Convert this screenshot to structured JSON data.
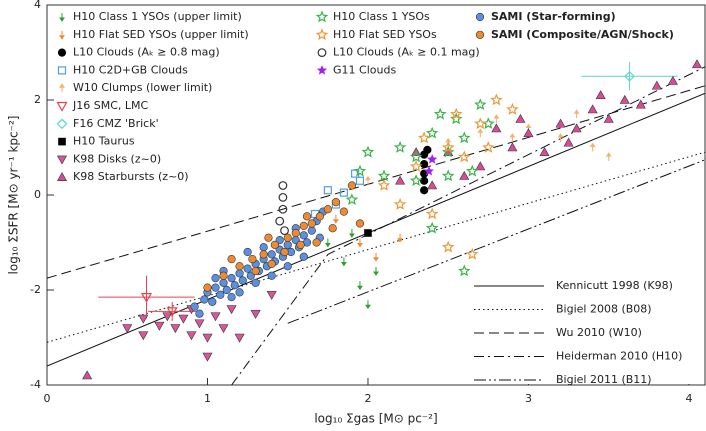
{
  "chart_data": {
    "type": "scatter",
    "xlabel": "log₁₀ Σgas [M⊙ pc⁻²]",
    "ylabel": "log₁₀ ΣSFR [M⊙ yr⁻¹ kpc⁻²]",
    "xlim": [
      0,
      4.1
    ],
    "ylim": [
      -4,
      4
    ],
    "xticks": [
      0,
      1,
      2,
      3,
      4
    ],
    "yticks": [
      -4,
      -2,
      0,
      2,
      4
    ],
    "series": [
      {
        "name": "H10 Class 1 YSOs (upper limit)",
        "color": "#2ca02c",
        "marker": "arrow-down",
        "x": [
          1.85,
          1.95,
          2.0,
          1.75,
          2.05,
          1.9
        ],
        "y": [
          -1.4,
          -1.9,
          -2.3,
          -1.0,
          -1.6,
          -0.8
        ]
      },
      {
        "name": "H10 Flat SED YSOs (upper limit)",
        "color": "#f08a30",
        "marker": "arrow-down",
        "x": [
          1.8,
          1.95,
          2.05,
          2.2
        ],
        "y": [
          -0.5,
          -1.0,
          -1.3,
          -0.9
        ]
      },
      {
        "name": "L10 Clouds (Aₖ ≥ 0.8 mag)",
        "color": "#000000",
        "marker": "circle",
        "x": [
          2.35,
          2.35,
          2.35,
          2.35,
          2.35,
          2.37
        ],
        "y": [
          0.85,
          0.65,
          0.45,
          0.3,
          0.1,
          0.95
        ]
      },
      {
        "name": "H10 C2D+GB Clouds",
        "color": "#4f9fe6",
        "marker": "open-square",
        "x": [
          1.67,
          1.8,
          1.85,
          1.92,
          1.95,
          1.75
        ],
        "y": [
          -0.4,
          -0.2,
          0.05,
          0.45,
          0.3,
          0.1
        ]
      },
      {
        "name": "W10 Clumps (lower limit)",
        "color": "#f5b06a",
        "marker": "arrow-up",
        "x": [
          2.0,
          2.5,
          2.8,
          3.0,
          3.2,
          3.4,
          3.5,
          3.3,
          3.1,
          2.7,
          2.9
        ],
        "y": [
          0.3,
          1.1,
          1.6,
          1.4,
          1.2,
          1.0,
          0.8,
          1.7,
          0.9,
          1.3,
          1.2
        ]
      },
      {
        "name": "J16 SMC, LMC",
        "color": "#e8434d",
        "marker": "open-triangle-down",
        "x": [
          0.62,
          0.78
        ],
        "y": [
          -2.15,
          -2.45
        ],
        "xerr": [
          0.3,
          0.15
        ],
        "yerr": [
          0.45,
          0.2
        ]
      },
      {
        "name": "F16 CMZ 'Brick'",
        "color": "#5dd5d0",
        "marker": "open-diamond",
        "x": [
          3.63
        ],
        "y": [
          2.5
        ],
        "xerr": [
          0.3
        ],
        "yerr": [
          0.3
        ]
      },
      {
        "name": "H10 Taurus",
        "color": "#000000",
        "marker": "square",
        "x": [
          2.0
        ],
        "y": [
          -0.8
        ]
      },
      {
        "name": "K98 Disks (z~0)",
        "color": "#d9569b",
        "marker": "triangle-down",
        "x": [
          0.6,
          0.7,
          0.8,
          0.85,
          0.9,
          0.95,
          1.0,
          1.05,
          1.1,
          1.15,
          0.75,
          0.5,
          1.2,
          1.3,
          1.0,
          0.9,
          1.4,
          0.6
        ],
        "y": [
          -2.6,
          -2.75,
          -2.8,
          -2.6,
          -2.95,
          -2.7,
          -3.0,
          -2.55,
          -2.8,
          -2.4,
          -2.55,
          -2.8,
          -3.0,
          -2.5,
          -3.4,
          -2.4,
          -2.1,
          -2.95
        ]
      },
      {
        "name": "K98 Starbursts (z~0)",
        "color": "#d94c95",
        "marker": "triangle-up",
        "x": [
          0.25,
          2.2,
          2.5,
          2.7,
          2.9,
          3.0,
          3.1,
          3.2,
          3.3,
          3.4,
          3.5,
          3.6,
          3.7,
          3.8,
          3.9,
          4.05,
          2.3,
          2.6,
          2.95,
          3.25,
          2.8,
          2.4,
          3.45
        ],
        "y": [
          -3.8,
          0.3,
          0.9,
          0.6,
          1.0,
          1.3,
          0.9,
          1.5,
          1.4,
          1.8,
          1.6,
          2.0,
          1.9,
          2.3,
          2.4,
          2.75,
          0.9,
          0.4,
          1.6,
          1.1,
          1.4,
          0.2,
          2.1
        ]
      },
      {
        "name": "H10 Class 1 YSOs",
        "color": "#3cb44b",
        "marker": "open-star",
        "x": [
          2.0,
          2.2,
          2.3,
          2.4,
          2.5,
          2.55,
          2.6,
          2.7,
          2.75,
          2.5,
          2.3,
          2.1,
          2.4,
          2.6,
          1.9,
          1.95,
          2.45,
          2.65
        ],
        "y": [
          0.9,
          1.0,
          0.8,
          1.3,
          0.9,
          1.6,
          1.2,
          1.9,
          1.5,
          0.4,
          0.3,
          0.4,
          -0.7,
          -1.6,
          -0.1,
          0.5,
          1.7,
          0.5
        ]
      },
      {
        "name": "H10 Flat SED YSOs",
        "color": "#e89a3c",
        "marker": "open-star",
        "x": [
          2.1,
          2.3,
          2.5,
          2.6,
          2.7,
          2.8,
          2.9,
          2.4,
          2.5,
          2.65,
          2.2,
          2.35,
          2.55,
          2.75
        ],
        "y": [
          0.2,
          0.6,
          1.0,
          0.8,
          1.5,
          2.0,
          1.8,
          -0.4,
          -1.1,
          -1.25,
          -0.2,
          1.2,
          1.7,
          1.0
        ]
      },
      {
        "name": "L10 Clouds (Aₖ ≥ 0.1 mag)",
        "color": "#000000",
        "marker": "open-circle",
        "x": [
          1.47,
          1.47,
          1.47,
          1.45,
          1.48
        ],
        "y": [
          0.2,
          -0.05,
          -0.3,
          -0.55,
          -0.75
        ]
      },
      {
        "name": "G11 Clouds",
        "color": "#a020f0",
        "marker": "plus",
        "x": [
          2.38,
          2.4
        ],
        "y": [
          0.5,
          0.75
        ]
      },
      {
        "name": "SAMI (Star-forming)",
        "color": "#5b8fe0",
        "marker": "circle",
        "x": [
          0.92,
          0.98,
          1.0,
          1.03,
          1.05,
          1.08,
          1.1,
          1.12,
          1.15,
          1.17,
          1.2,
          1.22,
          1.25,
          1.27,
          1.3,
          1.32,
          1.35,
          1.37,
          1.4,
          1.42,
          1.45,
          1.47,
          1.5,
          1.52,
          1.55,
          1.57,
          1.6,
          1.62,
          1.65,
          1.68,
          1.7,
          1.2,
          1.3,
          1.1,
          1.4,
          1.5,
          1.35,
          1.25,
          1.45,
          1.05,
          0.95,
          1.6,
          1.55,
          1.72,
          1.15
        ],
        "y": [
          -2.35,
          -2.2,
          -2.05,
          -2.25,
          -1.95,
          -2.1,
          -1.85,
          -2.0,
          -1.75,
          -1.9,
          -1.65,
          -1.8,
          -1.55,
          -1.7,
          -1.45,
          -1.6,
          -1.35,
          -1.5,
          -1.25,
          -1.4,
          -1.15,
          -1.3,
          -1.05,
          -1.2,
          -0.95,
          -1.1,
          -0.85,
          -1.0,
          -0.75,
          -0.55,
          -0.9,
          -2.05,
          -1.85,
          -1.6,
          -1.7,
          -1.5,
          -1.1,
          -1.2,
          -0.95,
          -1.75,
          -2.5,
          -1.3,
          -0.7,
          -0.35,
          -2.15
        ]
      },
      {
        "name": "SAMI (Composite/AGN/Shock)",
        "color": "#f08a30",
        "marker": "circle",
        "x": [
          1.0,
          1.1,
          1.2,
          1.28,
          1.35,
          1.42,
          1.5,
          1.55,
          1.6,
          1.65,
          1.7,
          1.75,
          1.8,
          1.85,
          1.9,
          1.95,
          1.78,
          1.62,
          1.48,
          1.3,
          1.15,
          1.38,
          1.68,
          1.58,
          1.4
        ],
        "y": [
          -1.95,
          -1.7,
          -1.5,
          -1.35,
          -1.25,
          -1.05,
          -0.9,
          -0.8,
          -0.65,
          -0.6,
          -0.45,
          -0.3,
          -0.15,
          -0.35,
          0.2,
          -0.6,
          -0.7,
          -0.45,
          -1.2,
          -1.6,
          -1.35,
          -0.9,
          -1.0,
          -1.05,
          -1.45
        ]
      }
    ],
    "lines": [
      {
        "name": "Kennicutt 1998 (K98)",
        "dash": "none",
        "x": [
          0,
          4.1
        ],
        "y": [
          -3.6,
          2.14
        ]
      },
      {
        "name": "Bigiel 2008 (B08)",
        "dash": "1.5 3",
        "x": [
          0,
          4.1
        ],
        "y": [
          -3.1,
          0.9
        ]
      },
      {
        "name": "Wu 2010 (W10)",
        "dash": "10 5",
        "x": [
          0,
          4.1
        ],
        "y": [
          -1.75,
          2.3
        ]
      },
      {
        "name": "Heiderman 2010 (H10)",
        "dash": "10 4 2 4",
        "x": [
          1.15,
          1.75,
          4.1
        ],
        "y": [
          -4,
          -1.25,
          2.7
        ]
      },
      {
        "name": "Bigiel 2011 (B11)",
        "dash": "12 3 2 3 2 3",
        "x": [
          1.5,
          4.1
        ],
        "y": [
          -2.7,
          0.74
        ]
      }
    ]
  }
}
